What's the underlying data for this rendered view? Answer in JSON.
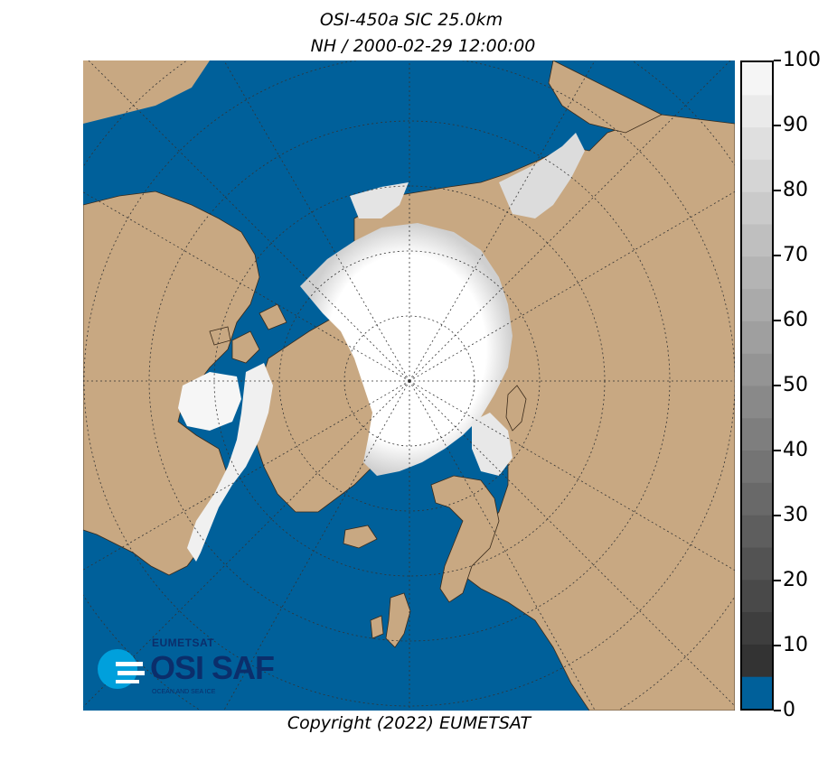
{
  "title": {
    "line1": "OSI-450a SIC 25.0km",
    "line2": "NH / 2000-02-29 12:00:00"
  },
  "copyright": "Copyright (2022)  EUMETSAT",
  "colorbar": {
    "min": 0,
    "max": 100,
    "ticks": [
      "0",
      "10",
      "20",
      "30",
      "40",
      "50",
      "60",
      "70",
      "80",
      "90",
      "100"
    ],
    "ocean_color": "#00609a",
    "land_color": "#c8a882",
    "ice_low_color": "#333333",
    "ice_high_color": "#f5f5f5"
  },
  "logo": {
    "org": "EUMETSAT",
    "name": "OSI SAF",
    "subtitle": "OCEAN AND SEA ICE"
  },
  "map": {
    "projection": "north-polar-stereographic",
    "graticule": "dotted",
    "variable": "sea-ice-concentration"
  }
}
